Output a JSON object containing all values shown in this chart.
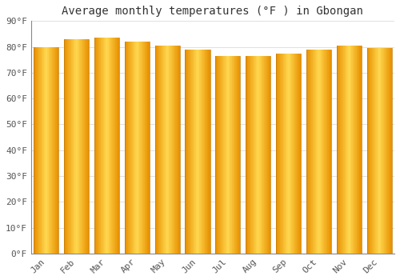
{
  "title": "Average monthly temperatures (°F ) in Gbongan",
  "months": [
    "Jan",
    "Feb",
    "Mar",
    "Apr",
    "May",
    "Jun",
    "Jul",
    "Aug",
    "Sep",
    "Oct",
    "Nov",
    "Dec"
  ],
  "values": [
    80,
    83,
    83.5,
    82,
    80.5,
    79,
    76.5,
    76.5,
    77.5,
    79,
    80.5,
    79.5
  ],
  "bar_color_center": "#FFD04A",
  "bar_color_edge": "#E89000",
  "background_color": "#FFFFFF",
  "grid_color": "#E0E0E0",
  "ylim": [
    0,
    90
  ],
  "yticks": [
    0,
    10,
    20,
    30,
    40,
    50,
    60,
    70,
    80,
    90
  ],
  "ytick_labels": [
    "0°F",
    "10°F",
    "20°F",
    "30°F",
    "40°F",
    "50°F",
    "60°F",
    "70°F",
    "80°F",
    "90°F"
  ],
  "title_fontsize": 10,
  "tick_fontsize": 8,
  "font_family": "monospace",
  "bar_width": 0.82
}
